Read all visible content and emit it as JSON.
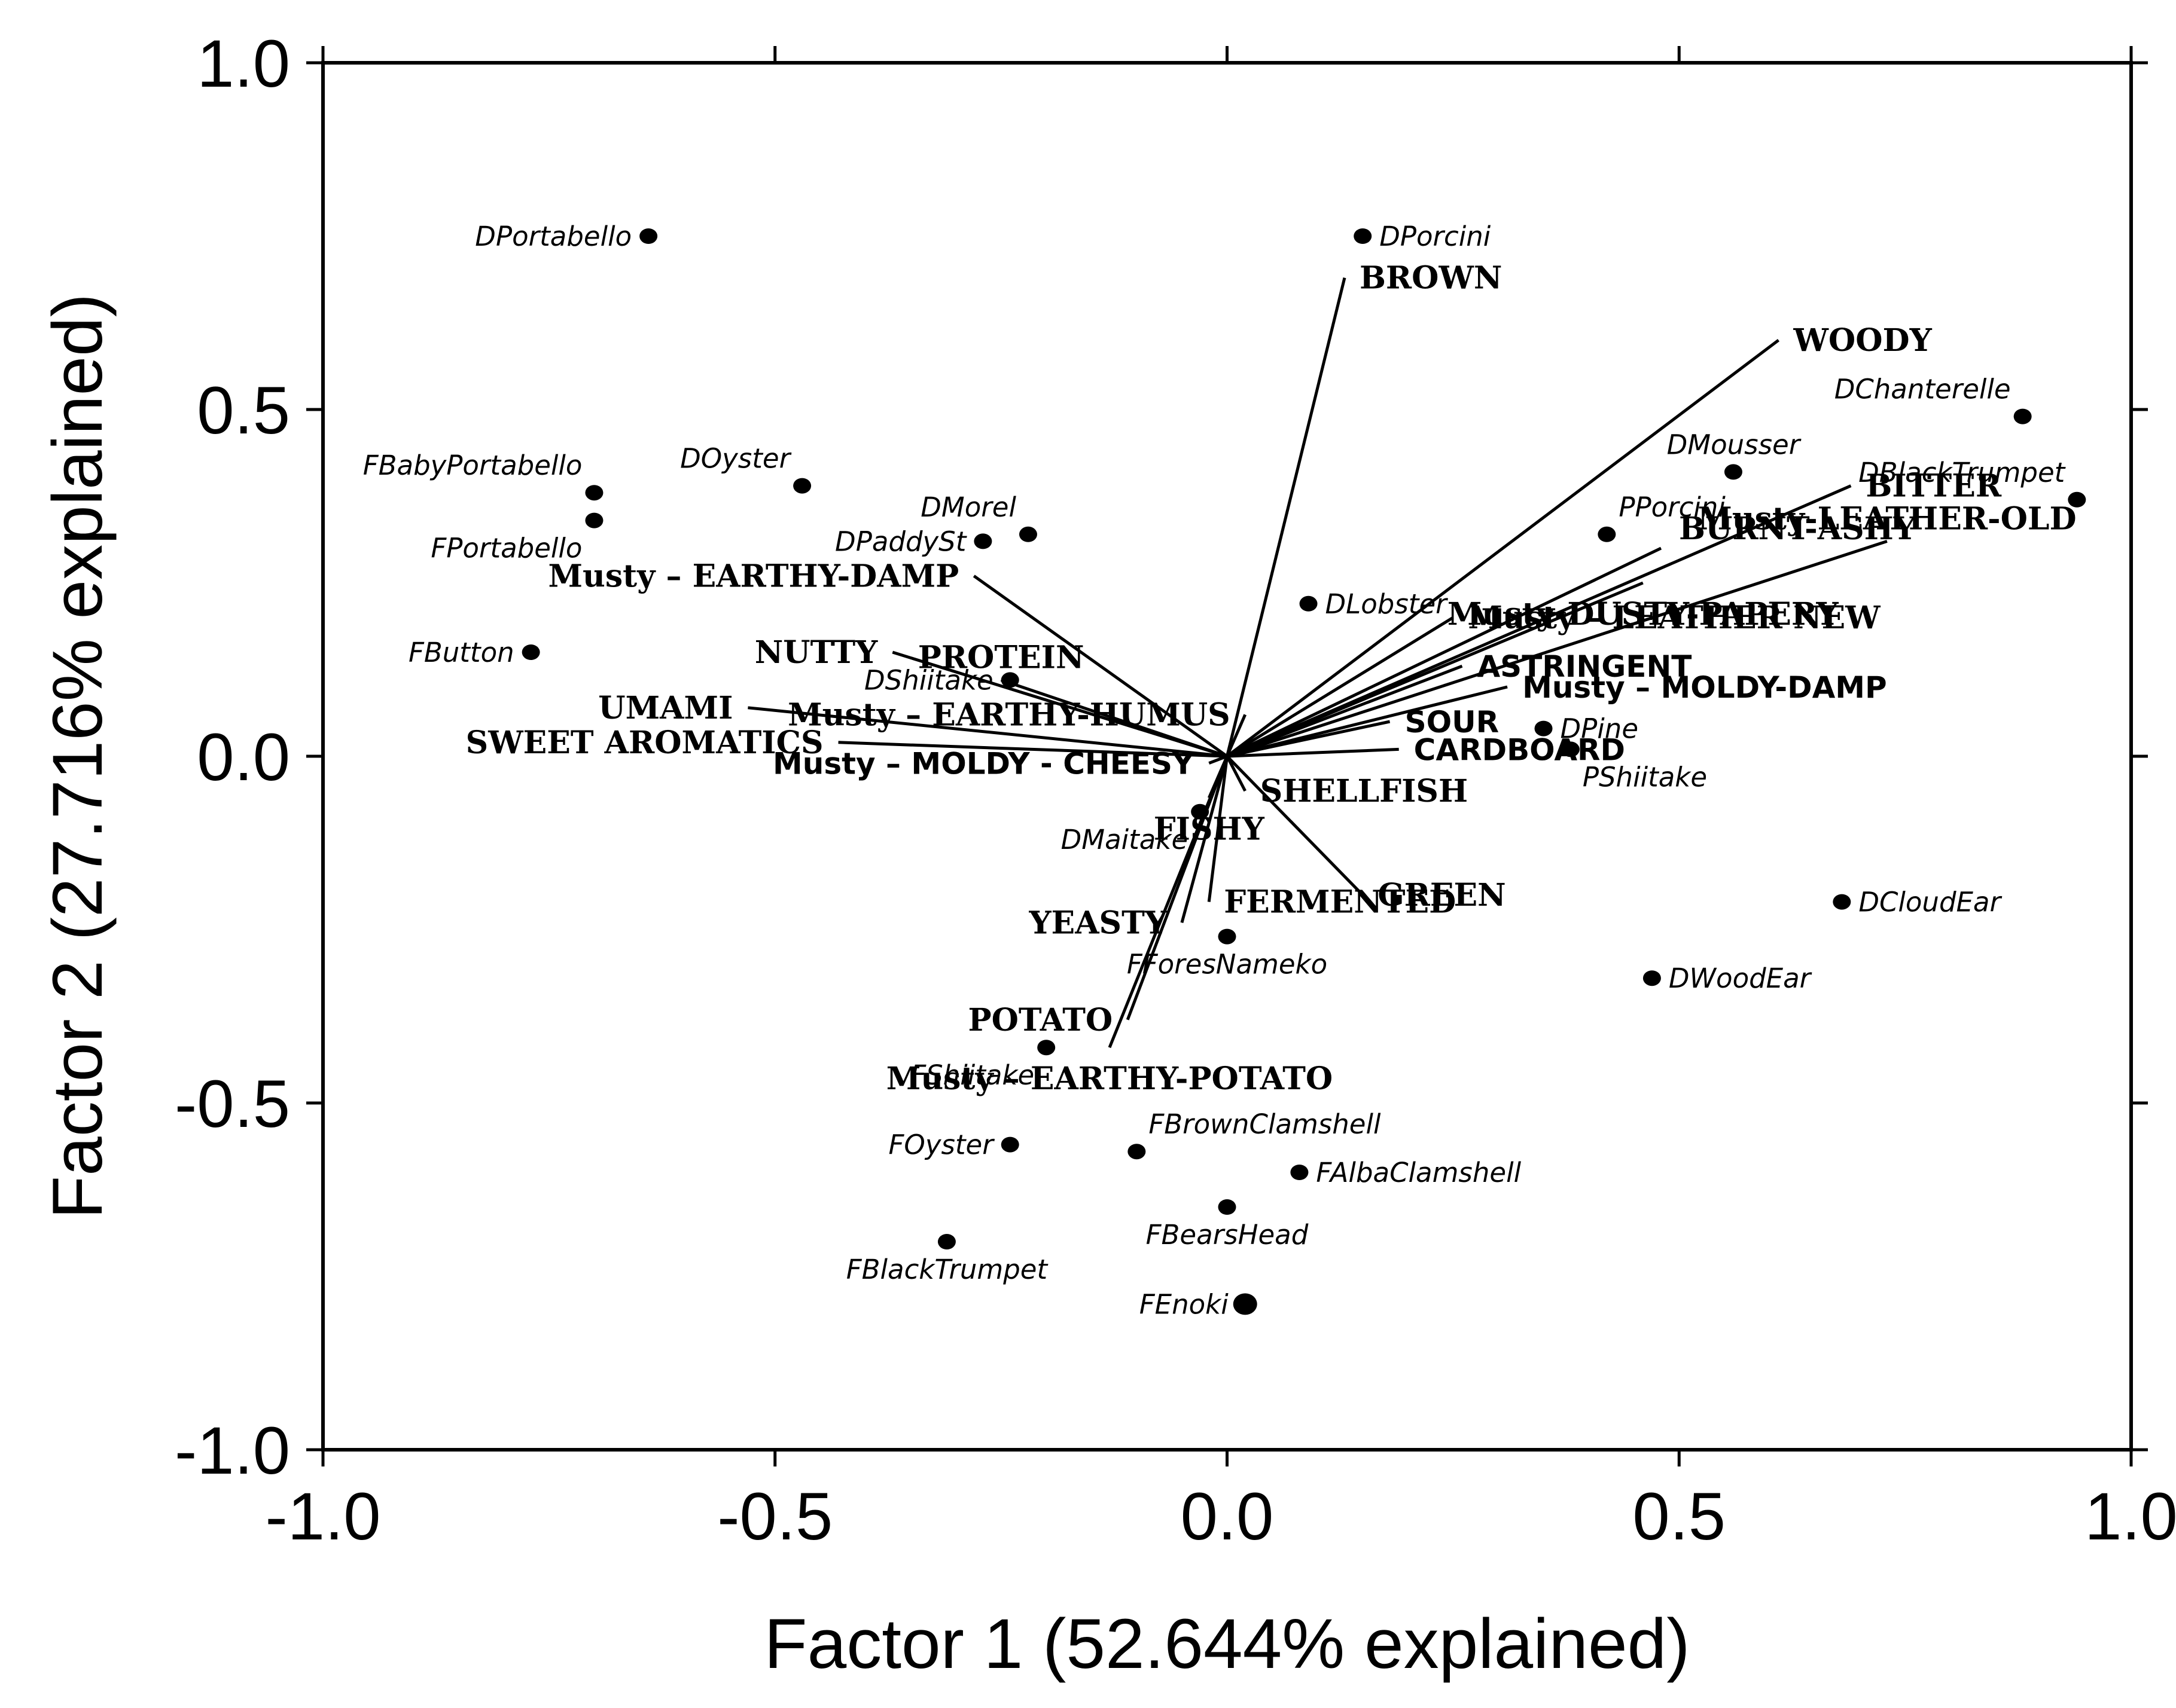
{
  "chart_data": {
    "type": "scatter",
    "subtype": "biplot",
    "xlabel": "Factor 1 (52.644% explained)",
    "ylabel": "Factor 2 (27.716% explained)",
    "xlim": [
      -1.0,
      1.0
    ],
    "ylim": [
      -1.0,
      1.0
    ],
    "xticks": [
      "-1.0",
      "-0.5",
      "0.0",
      "0.5",
      "1.0"
    ],
    "yticks": [
      "1.0",
      "0.5",
      "0.0",
      "-0.5",
      "-1.0"
    ],
    "grid": false,
    "samples": [
      {
        "label": "DPortabello",
        "x": -0.64,
        "y": 0.75,
        "pos": "left"
      },
      {
        "label": "DPorcini",
        "x": 0.15,
        "y": 0.75,
        "pos": "right"
      },
      {
        "label": "DChanterelle",
        "x": 0.88,
        "y": 0.49,
        "pos": "above-left"
      },
      {
        "label": "DMousser",
        "x": 0.56,
        "y": 0.41,
        "pos": "above"
      },
      {
        "label": "DBlackTrumpet",
        "x": 0.94,
        "y": 0.37,
        "pos": "above-left"
      },
      {
        "label": "PPorcini",
        "x": 0.42,
        "y": 0.32,
        "pos": "above-right"
      },
      {
        "label": "DOyster",
        "x": -0.47,
        "y": 0.39,
        "pos": "above-left"
      },
      {
        "label": "FBabyPortabello",
        "x": -0.7,
        "y": 0.38,
        "pos": "above-left"
      },
      {
        "label": "FPortabello",
        "x": -0.7,
        "y": 0.34,
        "pos": "below-left"
      },
      {
        "label": "DMorel",
        "x": -0.22,
        "y": 0.32,
        "pos": "above-left"
      },
      {
        "label": "DPaddySt",
        "x": -0.27,
        "y": 0.31,
        "pos": "left"
      },
      {
        "label": "FButton",
        "x": -0.77,
        "y": 0.15,
        "pos": "left"
      },
      {
        "label": "DLobster",
        "x": 0.09,
        "y": 0.22,
        "pos": "right"
      },
      {
        "label": "DShiitake",
        "x": -0.24,
        "y": 0.11,
        "pos": "left"
      },
      {
        "label": "DPine",
        "x": 0.35,
        "y": 0.04,
        "pos": "right"
      },
      {
        "label": "PShiitake",
        "x": 0.38,
        "y": 0.01,
        "pos": "below-right"
      },
      {
        "label": "DMaitake",
        "x": -0.03,
        "y": -0.08,
        "pos": "below-left"
      },
      {
        "label": "DCloudEar",
        "x": 0.68,
        "y": -0.21,
        "pos": "right"
      },
      {
        "label": "FForesNameko",
        "x": 0.0,
        "y": -0.26,
        "pos": "below"
      },
      {
        "label": "DWoodEar",
        "x": 0.47,
        "y": -0.32,
        "pos": "right"
      },
      {
        "label": "FShiitake",
        "x": -0.2,
        "y": -0.42,
        "pos": "below-left"
      },
      {
        "label": "FBrownClamshell",
        "x": -0.1,
        "y": -0.57,
        "pos": "above-right"
      },
      {
        "label": "FOyster",
        "x": -0.24,
        "y": -0.56,
        "pos": "left"
      },
      {
        "label": "FAlbaClamshell",
        "x": 0.08,
        "y": -0.6,
        "pos": "right"
      },
      {
        "label": "FBearsHead",
        "x": 0.0,
        "y": -0.65,
        "pos": "below"
      },
      {
        "label": "FBlackTrumpet",
        "x": -0.31,
        "y": -0.7,
        "pos": "below"
      },
      {
        "label": "FEnoki",
        "x": 0.02,
        "y": -0.79,
        "pos": "left"
      }
    ],
    "attributes": [
      {
        "label": "BROWN",
        "x": 0.13,
        "y": 0.69,
        "pos": "end-right"
      },
      {
        "label": "WOODY",
        "x": 0.61,
        "y": 0.6,
        "pos": "end-right"
      },
      {
        "label": "BITTER",
        "x": 0.69,
        "y": 0.39,
        "pos": "end-right"
      },
      {
        "label": "Musty-LEATHER-OLD",
        "x": 0.73,
        "y": 0.31,
        "pos": "end-above"
      },
      {
        "label": "BURNT-ASHY",
        "x": 0.48,
        "y": 0.3,
        "pos": "end-above-right"
      },
      {
        "label": "Musty – LEATHER NEW",
        "x": 0.25,
        "y": 0.2,
        "pos": "end-right"
      },
      {
        "label": "Musty-DUSTY-PAPERY",
        "x": 0.46,
        "y": 0.25,
        "pos": "end-below"
      },
      {
        "label": "ASTRINGENT",
        "x": 0.26,
        "y": 0.13,
        "pos": "end-right",
        "sans": true
      },
      {
        "label": "Musty – MOLDY-DAMP",
        "x": 0.31,
        "y": 0.1,
        "pos": "end-right",
        "sans": true
      },
      {
        "label": "SOUR",
        "x": 0.18,
        "y": 0.05,
        "pos": "end-right",
        "sans": true
      },
      {
        "label": "CARDBOARD",
        "x": 0.19,
        "y": 0.01,
        "pos": "end-right",
        "sans": true
      },
      {
        "label": "Musty – EARTHY-DAMP",
        "x": -0.28,
        "y": 0.26,
        "pos": "end-left"
      },
      {
        "label": "NUTTY",
        "x": -0.37,
        "y": 0.15,
        "pos": "end-left"
      },
      {
        "label": "PROTEIN",
        "x": -0.25,
        "y": 0.11,
        "pos": "end-above"
      },
      {
        "label": "Musty – EARTHY-HUMUS",
        "x": 0.02,
        "y": 0.06,
        "pos": "end-left"
      },
      {
        "label": "UMAMI",
        "x": -0.53,
        "y": 0.07,
        "pos": "end-left"
      },
      {
        "label": "SWEET AROMATICS",
        "x": -0.43,
        "y": 0.02,
        "pos": "end-left"
      },
      {
        "label": "Musty – MOLDY - CHEESY",
        "x": -0.02,
        "y": -0.01,
        "pos": "end-left",
        "sans": true
      },
      {
        "label": "FISHY",
        "x": -0.02,
        "y": -0.06,
        "pos": "end-below"
      },
      {
        "label": "SHELLFISH",
        "x": 0.02,
        "y": -0.05,
        "pos": "end-right"
      },
      {
        "label": "FERMENTED",
        "x": -0.02,
        "y": -0.21,
        "pos": "end-right"
      },
      {
        "label": "GREEN",
        "x": 0.15,
        "y": -0.2,
        "pos": "end-right"
      },
      {
        "label": "YEASTY",
        "x": -0.05,
        "y": -0.24,
        "pos": "end-left"
      },
      {
        "label": "POTATO",
        "x": -0.11,
        "y": -0.38,
        "pos": "end-left"
      },
      {
        "label": "Musty – EARTHY-POTATO",
        "x": -0.13,
        "y": -0.42,
        "pos": "end-below"
      }
    ]
  }
}
